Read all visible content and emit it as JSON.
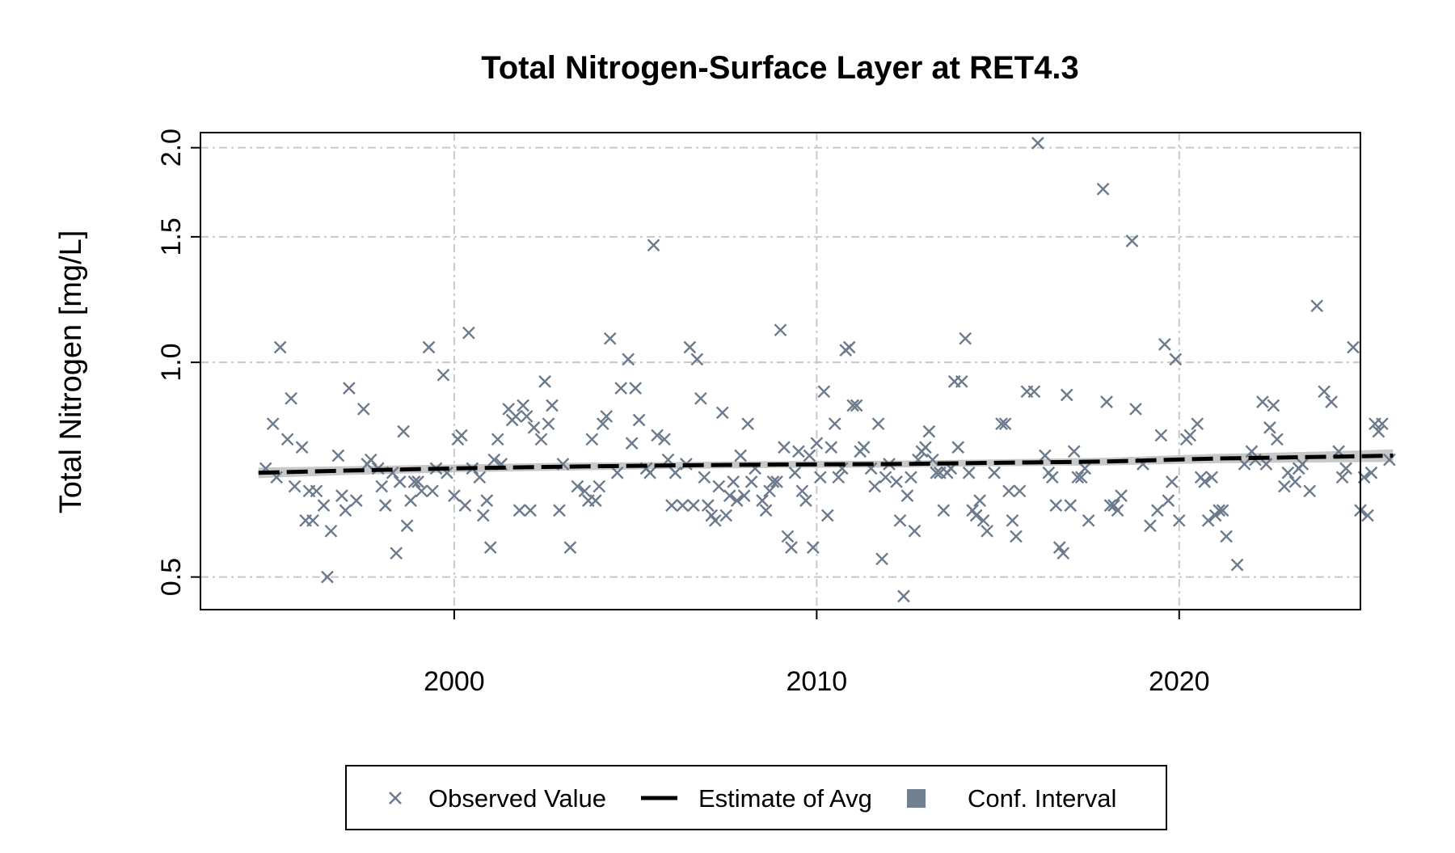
{
  "chart_data": {
    "type": "scatter",
    "title": "Total Nitrogen-Surface Layer at RET4.3",
    "xlabel": "",
    "ylabel": "Total Nitrogen [mg/L]",
    "x_scale": "linear (decimal year)",
    "y_scale": "log",
    "xlim": [
      1993,
      2025
    ],
    "ylim": [
      0.45,
      2.1
    ],
    "xticks": [
      2000,
      2010,
      2020
    ],
    "xtick_labels": [
      "2000",
      "2010",
      "2020"
    ],
    "yticks": [
      0.5,
      1.0,
      1.5,
      2.0
    ],
    "ytick_labels": [
      "0.5",
      "1.0",
      "1.5",
      "2.0"
    ],
    "grid": true,
    "legend_position": "bottom",
    "colors": {
      "observed": "#6b7a8c",
      "estimate": "#000000",
      "conf_interval": "#c8c8c8",
      "legend_conf": "#708090",
      "grid": "#c8c8c8"
    },
    "legend": [
      {
        "label": "Observed Value",
        "marker": "x"
      },
      {
        "label": "Estimate of Avg",
        "marker": "dashed-line"
      },
      {
        "label": "Conf. Interval",
        "marker": "square"
      }
    ],
    "series": [
      {
        "name": "Observed Value",
        "type": "scatter",
        "points": [
          [
            1994.8,
            0.71
          ],
          [
            1995.0,
            0.82
          ],
          [
            1995.1,
            0.69
          ],
          [
            1995.2,
            1.05
          ],
          [
            1995.4,
            0.78
          ],
          [
            1995.5,
            0.89
          ],
          [
            1995.6,
            0.67
          ],
          [
            1995.8,
            0.76
          ],
          [
            1995.9,
            0.6
          ],
          [
            1996.0,
            0.66
          ],
          [
            1996.1,
            0.6
          ],
          [
            1996.2,
            0.66
          ],
          [
            1996.4,
            0.63
          ],
          [
            1996.5,
            0.5
          ],
          [
            1996.6,
            0.58
          ],
          [
            1996.8,
            0.74
          ],
          [
            1996.9,
            0.65
          ],
          [
            1997.0,
            0.62
          ],
          [
            1997.1,
            0.92
          ],
          [
            1997.3,
            0.64
          ],
          [
            1997.5,
            0.86
          ],
          [
            1997.6,
            0.72
          ],
          [
            1997.7,
            0.73
          ],
          [
            1997.9,
            0.71
          ],
          [
            1998.0,
            0.67
          ],
          [
            1998.1,
            0.63
          ],
          [
            1998.3,
            0.7
          ],
          [
            1998.4,
            0.54
          ],
          [
            1998.5,
            0.68
          ],
          [
            1998.6,
            0.8
          ],
          [
            1998.7,
            0.59
          ],
          [
            1998.8,
            0.64
          ],
          [
            1998.9,
            0.68
          ],
          [
            1999.0,
            0.68
          ],
          [
            1999.1,
            0.66
          ],
          [
            1999.3,
            1.05
          ],
          [
            1999.4,
            0.66
          ],
          [
            1999.5,
            0.71
          ],
          [
            1999.7,
            0.96
          ],
          [
            1999.8,
            0.7
          ],
          [
            2000.0,
            0.65
          ],
          [
            2000.1,
            0.78
          ],
          [
            2000.2,
            0.79
          ],
          [
            2000.3,
            0.63
          ],
          [
            2000.4,
            1.1
          ],
          [
            2000.5,
            0.71
          ],
          [
            2000.7,
            0.69
          ],
          [
            2000.8,
            0.61
          ],
          [
            2000.9,
            0.64
          ],
          [
            2001.0,
            0.55
          ],
          [
            2001.1,
            0.73
          ],
          [
            2001.2,
            0.78
          ],
          [
            2001.3,
            0.72
          ],
          [
            2001.5,
            0.86
          ],
          [
            2001.6,
            0.83
          ],
          [
            2001.7,
            0.84
          ],
          [
            2001.8,
            0.62
          ],
          [
            2001.9,
            0.87
          ],
          [
            2002.0,
            0.84
          ],
          [
            2002.1,
            0.62
          ],
          [
            2002.2,
            0.81
          ],
          [
            2002.4,
            0.78
          ],
          [
            2002.5,
            0.94
          ],
          [
            2002.6,
            0.82
          ],
          [
            2002.7,
            0.87
          ],
          [
            2002.9,
            0.62
          ],
          [
            2003.0,
            0.72
          ],
          [
            2003.2,
            0.55
          ],
          [
            2003.4,
            0.67
          ],
          [
            2003.6,
            0.66
          ],
          [
            2003.7,
            0.64
          ],
          [
            2003.8,
            0.78
          ],
          [
            2003.9,
            0.64
          ],
          [
            2004.0,
            0.67
          ],
          [
            2004.1,
            0.82
          ],
          [
            2004.2,
            0.84
          ],
          [
            2004.3,
            1.08
          ],
          [
            2004.5,
            0.7
          ],
          [
            2004.6,
            0.92
          ],
          [
            2004.8,
            1.01
          ],
          [
            2004.9,
            0.77
          ],
          [
            2005.0,
            0.92
          ],
          [
            2005.1,
            0.83
          ],
          [
            2005.3,
            0.71
          ],
          [
            2005.4,
            0.7
          ],
          [
            2005.5,
            1.46
          ],
          [
            2005.6,
            0.79
          ],
          [
            2005.8,
            0.78
          ],
          [
            2005.9,
            0.73
          ],
          [
            2006.0,
            0.63
          ],
          [
            2006.1,
            0.7
          ],
          [
            2006.3,
            0.63
          ],
          [
            2006.4,
            0.72
          ],
          [
            2006.5,
            1.05
          ],
          [
            2006.6,
            0.63
          ],
          [
            2006.7,
            1.01
          ],
          [
            2006.8,
            0.89
          ],
          [
            2006.9,
            0.69
          ],
          [
            2007.0,
            0.63
          ],
          [
            2007.1,
            0.61
          ],
          [
            2007.2,
            0.6
          ],
          [
            2007.3,
            0.67
          ],
          [
            2007.4,
            0.85
          ],
          [
            2007.5,
            0.61
          ],
          [
            2007.6,
            0.65
          ],
          [
            2007.7,
            0.68
          ],
          [
            2007.8,
            0.64
          ],
          [
            2007.9,
            0.74
          ],
          [
            2008.0,
            0.65
          ],
          [
            2008.1,
            0.82
          ],
          [
            2008.2,
            0.68
          ],
          [
            2008.3,
            0.71
          ],
          [
            2008.5,
            0.64
          ],
          [
            2008.6,
            0.62
          ],
          [
            2008.7,
            0.66
          ],
          [
            2008.8,
            0.68
          ],
          [
            2008.9,
            0.68
          ],
          [
            2009.0,
            1.11
          ],
          [
            2009.1,
            0.76
          ],
          [
            2009.2,
            0.57
          ],
          [
            2009.3,
            0.55
          ],
          [
            2009.4,
            0.7
          ],
          [
            2009.5,
            0.75
          ],
          [
            2009.6,
            0.66
          ],
          [
            2009.7,
            0.64
          ],
          [
            2009.8,
            0.74
          ],
          [
            2009.9,
            0.55
          ],
          [
            2010.0,
            0.77
          ],
          [
            2010.1,
            0.69
          ],
          [
            2010.2,
            0.91
          ],
          [
            2010.3,
            0.61
          ],
          [
            2010.4,
            0.76
          ],
          [
            2010.5,
            0.82
          ],
          [
            2010.6,
            0.69
          ],
          [
            2010.7,
            0.71
          ],
          [
            2010.8,
            1.04
          ],
          [
            2010.9,
            1.05
          ],
          [
            2011.0,
            0.87
          ],
          [
            2011.1,
            0.87
          ],
          [
            2011.2,
            0.75
          ],
          [
            2011.3,
            0.76
          ],
          [
            2011.5,
            0.71
          ],
          [
            2011.6,
            0.67
          ],
          [
            2011.7,
            0.82
          ],
          [
            2011.8,
            0.53
          ],
          [
            2011.9,
            0.69
          ],
          [
            2012.0,
            0.72
          ],
          [
            2012.2,
            0.68
          ],
          [
            2012.3,
            0.6
          ],
          [
            2012.4,
            0.47
          ],
          [
            2012.5,
            0.65
          ],
          [
            2012.6,
            0.69
          ],
          [
            2012.7,
            0.58
          ],
          [
            2012.8,
            0.73
          ],
          [
            2012.9,
            0.75
          ],
          [
            2013.0,
            0.76
          ],
          [
            2013.1,
            0.8
          ],
          [
            2013.2,
            0.73
          ],
          [
            2013.3,
            0.7
          ],
          [
            2013.4,
            0.7
          ],
          [
            2013.5,
            0.62
          ],
          [
            2013.6,
            0.7
          ],
          [
            2013.7,
            0.71
          ],
          [
            2013.8,
            0.94
          ],
          [
            2013.9,
            0.76
          ],
          [
            2014.0,
            0.94
          ],
          [
            2014.1,
            1.08
          ],
          [
            2014.2,
            0.7
          ],
          [
            2014.3,
            0.62
          ],
          [
            2014.4,
            0.61
          ],
          [
            2014.5,
            0.64
          ],
          [
            2014.6,
            0.6
          ],
          [
            2014.7,
            0.58
          ],
          [
            2014.9,
            0.7
          ],
          [
            2015.1,
            0.82
          ],
          [
            2015.2,
            0.82
          ],
          [
            2015.3,
            0.66
          ],
          [
            2015.4,
            0.6
          ],
          [
            2015.5,
            0.57
          ],
          [
            2015.6,
            0.66
          ],
          [
            2015.8,
            0.91
          ],
          [
            2016.0,
            0.91
          ],
          [
            2016.1,
            2.03
          ],
          [
            2016.3,
            0.74
          ],
          [
            2016.4,
            0.7
          ],
          [
            2016.5,
            0.69
          ],
          [
            2016.6,
            0.63
          ],
          [
            2016.7,
            0.55
          ],
          [
            2016.8,
            0.54
          ],
          [
            2016.9,
            0.9
          ],
          [
            2017.0,
            0.63
          ],
          [
            2017.1,
            0.75
          ],
          [
            2017.2,
            0.69
          ],
          [
            2017.3,
            0.69
          ],
          [
            2017.4,
            0.71
          ],
          [
            2017.5,
            0.6
          ],
          [
            2017.9,
            1.75
          ],
          [
            2018.0,
            0.88
          ],
          [
            2018.1,
            0.63
          ],
          [
            2018.2,
            0.63
          ],
          [
            2018.3,
            0.62
          ],
          [
            2018.4,
            0.65
          ],
          [
            2018.7,
            1.48
          ],
          [
            2018.8,
            0.86
          ],
          [
            2019.0,
            0.72
          ],
          [
            2019.2,
            0.59
          ],
          [
            2019.4,
            0.62
          ],
          [
            2019.5,
            0.79
          ],
          [
            2019.6,
            1.06
          ],
          [
            2019.7,
            0.64
          ],
          [
            2019.8,
            0.68
          ],
          [
            2019.9,
            1.01
          ],
          [
            2020.0,
            0.6
          ],
          [
            2020.2,
            0.78
          ],
          [
            2020.3,
            0.79
          ],
          [
            2020.5,
            0.82
          ],
          [
            2020.6,
            0.69
          ],
          [
            2020.7,
            0.68
          ],
          [
            2020.8,
            0.6
          ],
          [
            2020.9,
            0.69
          ],
          [
            2021.0,
            0.61
          ],
          [
            2021.1,
            0.62
          ],
          [
            2021.2,
            0.62
          ],
          [
            2021.3,
            0.57
          ],
          [
            2021.6,
            0.52
          ],
          [
            2021.8,
            0.72
          ],
          [
            2022.0,
            0.75
          ],
          [
            2022.1,
            0.73
          ],
          [
            2022.3,
            0.88
          ],
          [
            2022.4,
            0.72
          ],
          [
            2022.5,
            0.81
          ],
          [
            2022.6,
            0.87
          ],
          [
            2022.7,
            0.78
          ],
          [
            2022.9,
            0.67
          ],
          [
            2023.0,
            0.7
          ],
          [
            2023.2,
            0.68
          ],
          [
            2023.3,
            0.71
          ],
          [
            2023.4,
            0.72
          ],
          [
            2023.6,
            0.66
          ],
          [
            2023.8,
            1.2
          ],
          [
            2024.0,
            0.91
          ],
          [
            2024.2,
            0.88
          ],
          [
            2024.4,
            0.75
          ],
          [
            2024.5,
            0.69
          ],
          [
            2024.6,
            0.71
          ],
          [
            2024.8,
            1.05
          ],
          [
            2025.0,
            0.62
          ],
          [
            2025.1,
            0.69
          ],
          [
            2025.2,
            0.61
          ],
          [
            2025.3,
            0.7
          ],
          [
            2025.4,
            0.82
          ],
          [
            2025.5,
            0.8
          ],
          [
            2025.6,
            0.82
          ],
          [
            2025.8,
            0.73
          ]
        ]
      },
      {
        "name": "Estimate of Avg",
        "type": "line",
        "x": [
          1994.6,
          1997,
          2000,
          2003,
          2006,
          2009,
          2012,
          2015,
          2018,
          2021,
          2024,
          2025.9
        ],
        "y": [
          0.7,
          0.705,
          0.71,
          0.714,
          0.717,
          0.719,
          0.72,
          0.723,
          0.726,
          0.733,
          0.737,
          0.74
        ]
      },
      {
        "name": "Conf. Interval",
        "type": "band",
        "x": [
          1994.6,
          1997,
          2000,
          2003,
          2006,
          2009,
          2012,
          2015,
          2018,
          2021,
          2024,
          2025.9
        ],
        "lower": [
          0.688,
          0.695,
          0.701,
          0.705,
          0.709,
          0.711,
          0.712,
          0.715,
          0.717,
          0.722,
          0.724,
          0.725
        ],
        "upper": [
          0.712,
          0.715,
          0.719,
          0.723,
          0.725,
          0.727,
          0.728,
          0.731,
          0.735,
          0.744,
          0.75,
          0.755
        ]
      }
    ]
  }
}
